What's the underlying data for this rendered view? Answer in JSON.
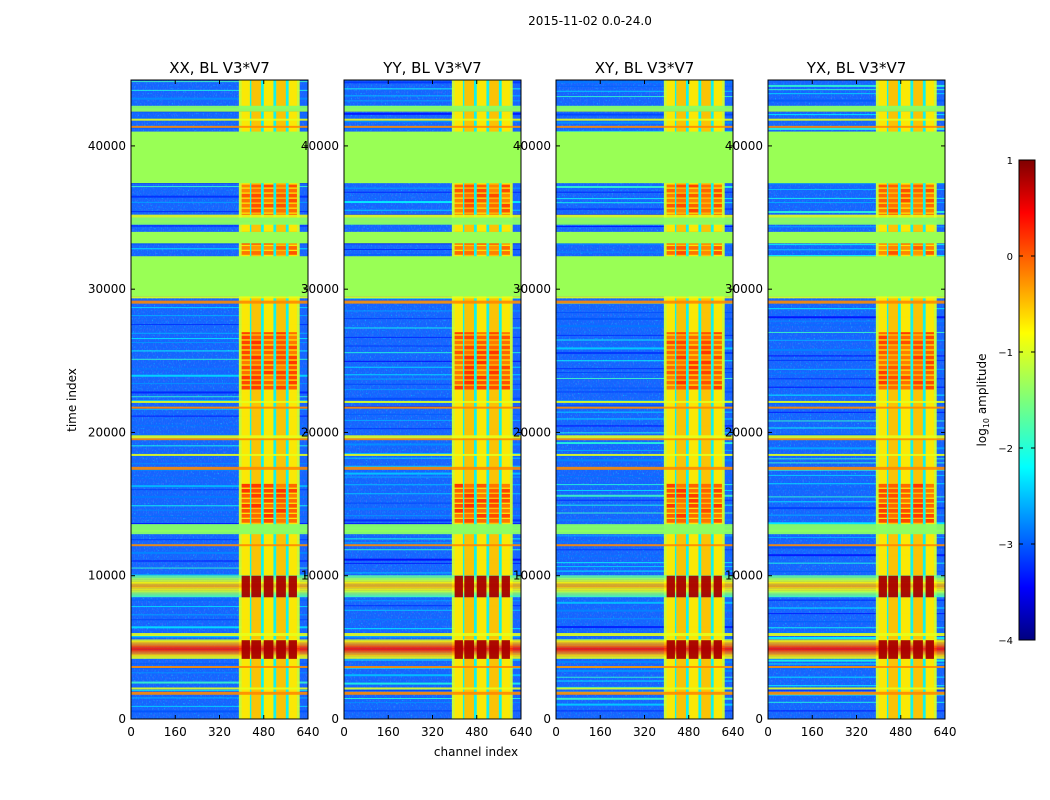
{
  "chart_data": {
    "type": "heatmap",
    "suptitle": "2015-11-02 0.0-24.0",
    "xlabel": "channel index",
    "ylabel": "time index",
    "xlim": [
      0,
      640
    ],
    "ylim": [
      0,
      44600
    ],
    "xticks": [
      0,
      160,
      320,
      480,
      640
    ],
    "yticks": [
      0,
      10000,
      20000,
      30000,
      40000
    ],
    "panels": [
      {
        "title": "XX, BL V3*V7",
        "pol": "XX"
      },
      {
        "title": "YY, BL V3*V7",
        "pol": "YY"
      },
      {
        "title": "XY, BL V3*V7",
        "pol": "XY"
      },
      {
        "title": "YX, BL V3*V7",
        "pol": "YX"
      }
    ],
    "colorbar": {
      "label": "log10 amplitude",
      "range": [
        -4,
        1
      ],
      "ticks": [
        1,
        0,
        -1,
        -2,
        -3,
        -4
      ],
      "tick_labels": [
        "1",
        "0",
        "−1",
        "−2",
        "−3",
        "−4"
      ],
      "colormap": "jet"
    },
    "flagged_bands_time": [
      [
        37400,
        41000
      ],
      [
        29500,
        32300
      ],
      [
        33200,
        34000
      ]
    ],
    "rfi_channel_band": [
      400,
      600
    ],
    "bright_time_bands": [
      [
        4200,
        5500
      ],
      [
        8500,
        10000
      ]
    ]
  }
}
